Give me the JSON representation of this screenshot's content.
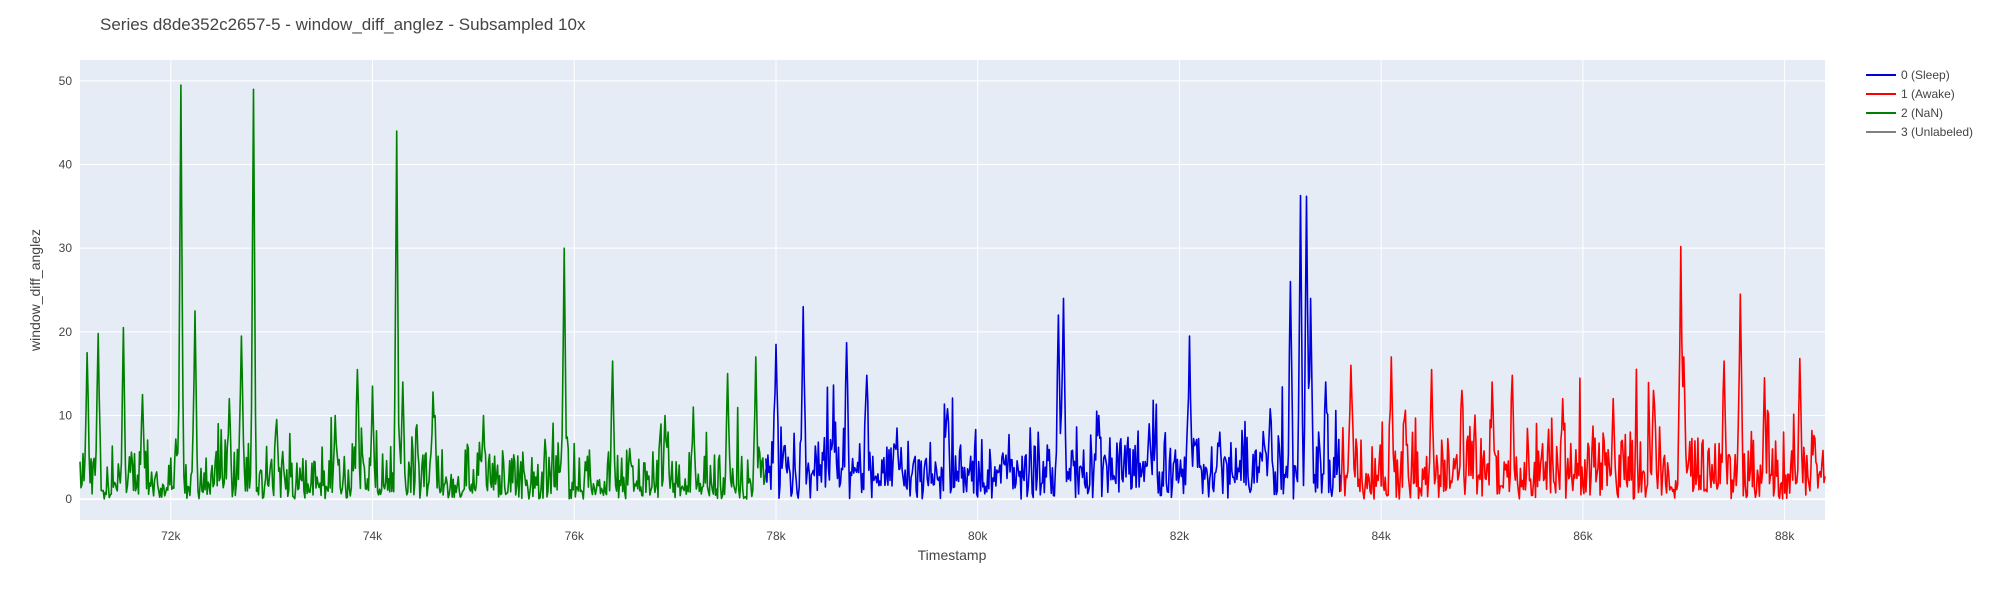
{
  "chart_data": {
    "type": "line",
    "title": "Series d8de352c2657-5 - window_diff_anglez - Subsampled 10x",
    "xlabel": "Timestamp",
    "ylabel": "window_diff_anglez",
    "xlim": [
      71100,
      88400
    ],
    "ylim": [
      -2.5,
      52.5
    ],
    "x_ticks": [
      72000,
      74000,
      76000,
      78000,
      80000,
      82000,
      84000,
      86000,
      88000
    ],
    "x_tick_labels": [
      "72k",
      "74k",
      "76k",
      "78k",
      "80k",
      "82k",
      "84k",
      "86k",
      "88k"
    ],
    "y_ticks": [
      0,
      10,
      20,
      30,
      40,
      50
    ],
    "y_tick_labels": [
      "0",
      "10",
      "20",
      "30",
      "40",
      "50"
    ],
    "grid": true,
    "legend_position": "top-right",
    "series": [
      {
        "name": "0 (Sleep)",
        "color": "#0000dd",
        "x_start": 77900,
        "x_end": 83600,
        "base_level": 4,
        "noise_level": 5,
        "peaks": [
          [
            78000,
            18.5
          ],
          [
            78270,
            23
          ],
          [
            78700,
            18.7
          ],
          [
            78900,
            14.8
          ],
          [
            79200,
            8.5
          ],
          [
            79700,
            10.8
          ],
          [
            80250,
            5.5
          ],
          [
            80800,
            22
          ],
          [
            80850,
            24
          ],
          [
            81200,
            10
          ],
          [
            81500,
            3
          ],
          [
            81700,
            9
          ],
          [
            82100,
            19.5
          ],
          [
            82400,
            8
          ],
          [
            82900,
            10.8
          ],
          [
            83100,
            26
          ],
          [
            83200,
            36.3
          ],
          [
            83260,
            36.2
          ],
          [
            83300,
            24
          ],
          [
            83450,
            14
          ]
        ]
      },
      {
        "name": "1 (Awake)",
        "color": "#ff0000",
        "x_start": 83600,
        "x_end": 88400,
        "base_level": 3,
        "noise_level": 6,
        "peaks": [
          [
            83700,
            16
          ],
          [
            84100,
            17
          ],
          [
            84500,
            15.5
          ],
          [
            84800,
            13
          ],
          [
            85100,
            14
          ],
          [
            85300,
            14.8
          ],
          [
            85800,
            12
          ],
          [
            86300,
            12
          ],
          [
            86700,
            13
          ],
          [
            86970,
            30.2
          ],
          [
            87000,
            17
          ],
          [
            87400,
            16.5
          ],
          [
            87560,
            24.5
          ],
          [
            87800,
            14.5
          ],
          [
            88150,
            16.8
          ],
          [
            88300,
            5.5
          ]
        ]
      },
      {
        "name": "2 (NaN)",
        "color": "#008000",
        "x_start": 71100,
        "x_end": 77900,
        "base_level": 2,
        "noise_level": 5,
        "peaks": [
          [
            71170,
            17.5
          ],
          [
            71280,
            19.8
          ],
          [
            71530,
            20.5
          ],
          [
            71720,
            12.5
          ],
          [
            72100,
            49.5
          ],
          [
            72240,
            22.5
          ],
          [
            72580,
            12
          ],
          [
            72700,
            19.5
          ],
          [
            72820,
            49
          ],
          [
            73050,
            9.5
          ],
          [
            73630,
            10
          ],
          [
            73850,
            15.5
          ],
          [
            74000,
            13.5
          ],
          [
            74240,
            44
          ],
          [
            74300,
            14
          ],
          [
            74600,
            12.8
          ],
          [
            75100,
            10
          ],
          [
            75900,
            30
          ],
          [
            76380,
            16.5
          ],
          [
            76900,
            10
          ],
          [
            77180,
            11
          ],
          [
            77520,
            15
          ],
          [
            77800,
            17
          ]
        ]
      },
      {
        "name": "3 (Unlabeled)",
        "color": "#808080",
        "x_start": null,
        "x_end": null,
        "peaks": []
      }
    ]
  }
}
